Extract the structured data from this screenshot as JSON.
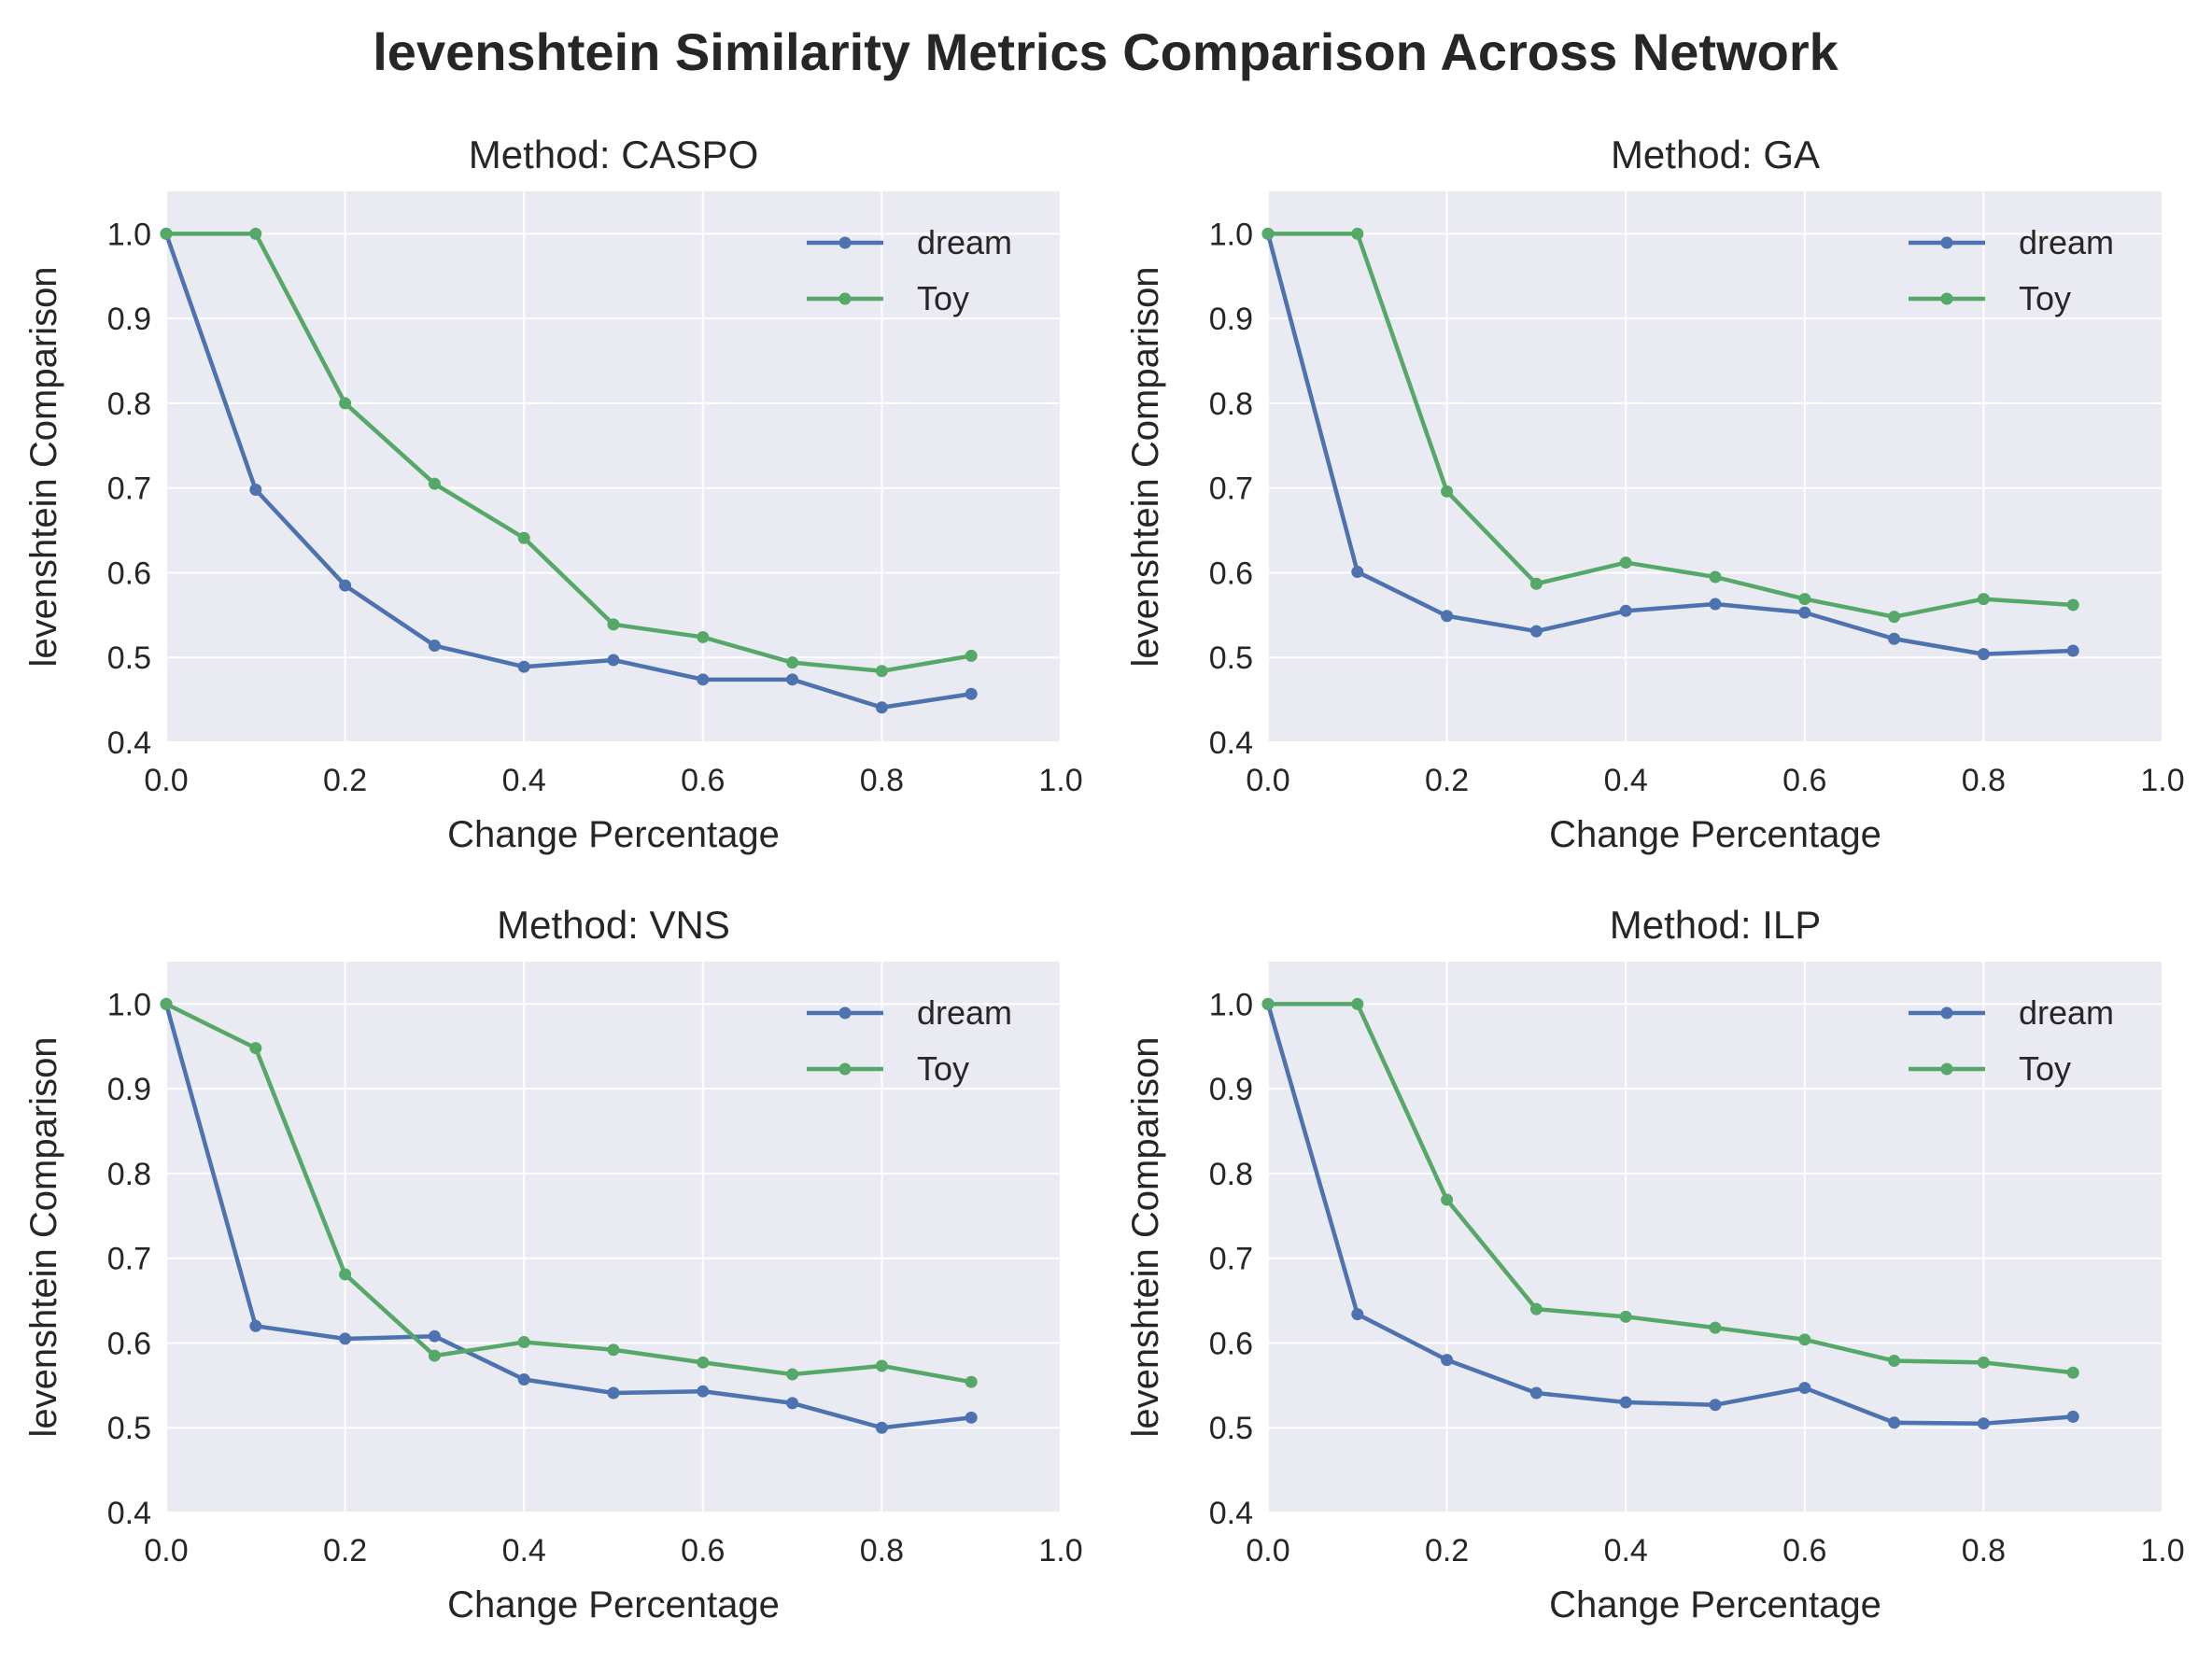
{
  "title": "levenshtein Similarity Metrics Comparison Across Network",
  "colors": {
    "dream": "#4c72b0",
    "Toy": "#55a868",
    "plot_background": "#eaeaf2",
    "grid": "#ffffff"
  },
  "chart_data": [
    {
      "type": "line",
      "title": "Method: CASPO",
      "xlabel": "Change Percentage",
      "ylabel": "levenshtein Comparison",
      "xlim": [
        0,
        1
      ],
      "ylim": [
        0.4,
        1.05
      ],
      "xticks": [
        "0.0",
        "0.2",
        "0.4",
        "0.6",
        "0.8",
        "1.0"
      ],
      "yticks": [
        "0.4",
        "0.5",
        "0.6",
        "0.7",
        "0.8",
        "0.9",
        "1.0"
      ],
      "grid": true,
      "legend_position": "top-right",
      "x": [
        0.0,
        0.1,
        0.2,
        0.3,
        0.4,
        0.5,
        0.6,
        0.7,
        0.8,
        0.9
      ],
      "series": [
        {
          "name": "dream",
          "values": [
            1.0,
            0.698,
            0.585,
            0.514,
            0.489,
            0.497,
            0.474,
            0.474,
            0.441,
            0.457
          ]
        },
        {
          "name": "Toy",
          "values": [
            1.0,
            1.0,
            0.8,
            0.705,
            0.641,
            0.539,
            0.524,
            0.494,
            0.484,
            0.502
          ]
        }
      ]
    },
    {
      "type": "line",
      "title": "Method: GA",
      "xlabel": "Change Percentage",
      "ylabel": "levenshtein Comparison",
      "xlim": [
        0,
        1
      ],
      "ylim": [
        0.4,
        1.05
      ],
      "xticks": [
        "0.0",
        "0.2",
        "0.4",
        "0.6",
        "0.8",
        "1.0"
      ],
      "yticks": [
        "0.4",
        "0.5",
        "0.6",
        "0.7",
        "0.8",
        "0.9",
        "1.0"
      ],
      "grid": true,
      "legend_position": "top-right",
      "x": [
        0.0,
        0.1,
        0.2,
        0.3,
        0.4,
        0.5,
        0.6,
        0.7,
        0.8,
        0.9
      ],
      "series": [
        {
          "name": "dream",
          "values": [
            1.0,
            0.601,
            0.549,
            0.531,
            0.555,
            0.563,
            0.553,
            0.522,
            0.504,
            0.508
          ]
        },
        {
          "name": "Toy",
          "values": [
            1.0,
            1.0,
            0.696,
            0.587,
            0.612,
            0.595,
            0.569,
            0.548,
            0.569,
            0.562
          ]
        }
      ]
    },
    {
      "type": "line",
      "title": "Method: VNS",
      "xlabel": "Change Percentage",
      "ylabel": "levenshtein Comparison",
      "xlim": [
        0,
        1
      ],
      "ylim": [
        0.4,
        1.05
      ],
      "xticks": [
        "0.0",
        "0.2",
        "0.4",
        "0.6",
        "0.8",
        "1.0"
      ],
      "yticks": [
        "0.4",
        "0.5",
        "0.6",
        "0.7",
        "0.8",
        "0.9",
        "1.0"
      ],
      "grid": true,
      "legend_position": "top-right",
      "x": [
        0.0,
        0.1,
        0.2,
        0.3,
        0.4,
        0.5,
        0.6,
        0.7,
        0.8,
        0.9
      ],
      "series": [
        {
          "name": "dream",
          "values": [
            1.0,
            0.62,
            0.605,
            0.608,
            0.557,
            0.541,
            0.543,
            0.529,
            0.5,
            0.512
          ]
        },
        {
          "name": "Toy",
          "values": [
            1.0,
            0.948,
            0.681,
            0.585,
            0.601,
            0.592,
            0.577,
            0.563,
            0.573,
            0.554
          ]
        }
      ]
    },
    {
      "type": "line",
      "title": "Method: ILP",
      "xlabel": "Change Percentage",
      "ylabel": "levenshtein Comparison",
      "xlim": [
        0,
        1
      ],
      "ylim": [
        0.4,
        1.05
      ],
      "xticks": [
        "0.0",
        "0.2",
        "0.4",
        "0.6",
        "0.8",
        "1.0"
      ],
      "yticks": [
        "0.4",
        "0.5",
        "0.6",
        "0.7",
        "0.8",
        "0.9",
        "1.0"
      ],
      "grid": true,
      "legend_position": "top-right",
      "x": [
        0.0,
        0.1,
        0.2,
        0.3,
        0.4,
        0.5,
        0.6,
        0.7,
        0.8,
        0.9
      ],
      "series": [
        {
          "name": "dream",
          "values": [
            1.0,
            0.634,
            0.58,
            0.541,
            0.53,
            0.527,
            0.547,
            0.506,
            0.505,
            0.513
          ]
        },
        {
          "name": "Toy",
          "values": [
            1.0,
            1.0,
            0.769,
            0.64,
            0.631,
            0.618,
            0.604,
            0.579,
            0.577,
            0.565
          ]
        }
      ]
    }
  ]
}
